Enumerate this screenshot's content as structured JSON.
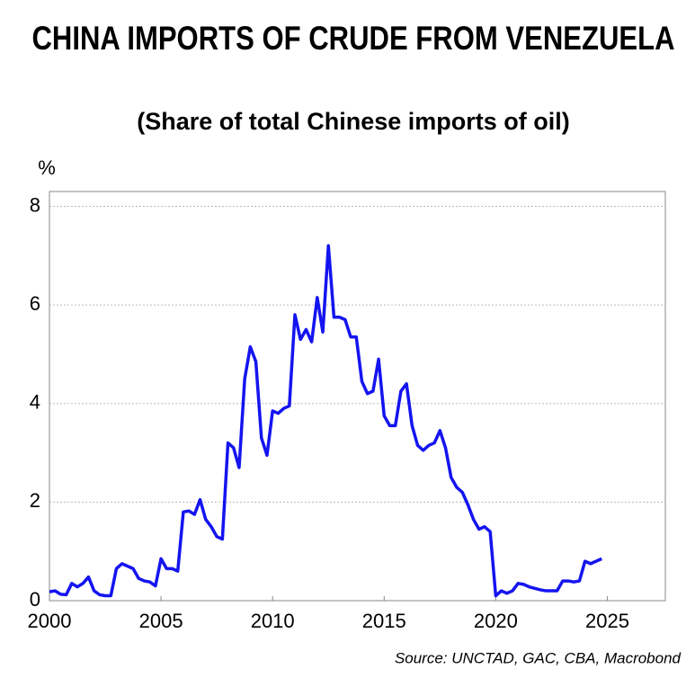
{
  "chart_data": {
    "type": "line",
    "title": "CHINA IMPORTS OF CRUDE FROM VENEZUELA",
    "subtitle": "(Share of total Chinese imports of oil)",
    "y_label": "%",
    "source": "Source: UNCTAD, GAC, CBA, Macrobond",
    "x": [
      2000,
      2000.25,
      2000.5,
      2000.75,
      2001,
      2001.25,
      2001.5,
      2001.75,
      2002,
      2002.25,
      2002.5,
      2002.75,
      2003,
      2003.25,
      2003.5,
      2003.75,
      2004,
      2004.25,
      2004.5,
      2004.75,
      2005,
      2005.25,
      2005.5,
      2005.75,
      2006,
      2006.25,
      2006.5,
      2006.75,
      2007,
      2007.25,
      2007.5,
      2007.75,
      2008,
      2008.25,
      2008.5,
      2008.75,
      2009,
      2009.25,
      2009.5,
      2009.75,
      2010,
      2010.25,
      2010.5,
      2010.75,
      2011,
      2011.25,
      2011.5,
      2011.75,
      2012,
      2012.25,
      2012.5,
      2012.75,
      2013,
      2013.25,
      2013.5,
      2013.75,
      2014,
      2014.25,
      2014.5,
      2014.75,
      2015,
      2015.25,
      2015.5,
      2015.75,
      2016,
      2016.25,
      2016.5,
      2016.75,
      2017,
      2017.25,
      2017.5,
      2017.75,
      2018,
      2018.25,
      2018.5,
      2018.75,
      2019,
      2019.25,
      2019.5,
      2019.75,
      2020,
      2020.25,
      2020.5,
      2020.75,
      2021,
      2021.25,
      2021.5,
      2021.75,
      2022,
      2022.25,
      2022.5,
      2022.75,
      2023,
      2023.25,
      2023.5,
      2023.75,
      2024,
      2024.25,
      2024.5,
      2024.75
    ],
    "series": [
      {
        "name": "Venezuela share",
        "color": "#1414f0",
        "values": [
          0.18,
          0.2,
          0.13,
          0.12,
          0.35,
          0.28,
          0.35,
          0.48,
          0.2,
          0.12,
          0.1,
          0.1,
          0.65,
          0.75,
          0.7,
          0.65,
          0.45,
          0.4,
          0.38,
          0.3,
          0.85,
          0.65,
          0.65,
          0.6,
          1.8,
          1.82,
          1.75,
          2.05,
          1.65,
          1.5,
          1.3,
          1.25,
          3.2,
          3.1,
          2.7,
          4.5,
          5.15,
          4.85,
          3.3,
          2.95,
          3.85,
          3.8,
          3.9,
          3.95,
          5.8,
          5.3,
          5.5,
          5.25,
          6.15,
          5.45,
          7.2,
          5.75,
          5.75,
          5.7,
          5.35,
          5.35,
          4.45,
          4.2,
          4.25,
          4.9,
          3.75,
          3.55,
          3.55,
          4.25,
          4.4,
          3.55,
          3.15,
          3.05,
          3.15,
          3.2,
          3.45,
          3.1,
          2.5,
          2.3,
          2.2,
          1.95,
          1.65,
          1.45,
          1.5,
          1.4,
          0.1,
          0.2,
          0.15,
          0.2,
          0.35,
          0.33,
          0.28,
          0.25,
          0.22,
          0.2,
          0.2,
          0.2,
          0.4,
          0.4,
          0.38,
          0.4,
          0.8,
          0.75,
          0.8,
          0.85
        ]
      }
    ],
    "xlim": [
      2000,
      2027.6
    ],
    "xticks": [
      2000,
      2005,
      2010,
      2015,
      2020,
      2025
    ],
    "ylim": [
      0,
      8.3
    ],
    "yticks": [
      0,
      2,
      4,
      6,
      8
    ],
    "grid": true
  }
}
